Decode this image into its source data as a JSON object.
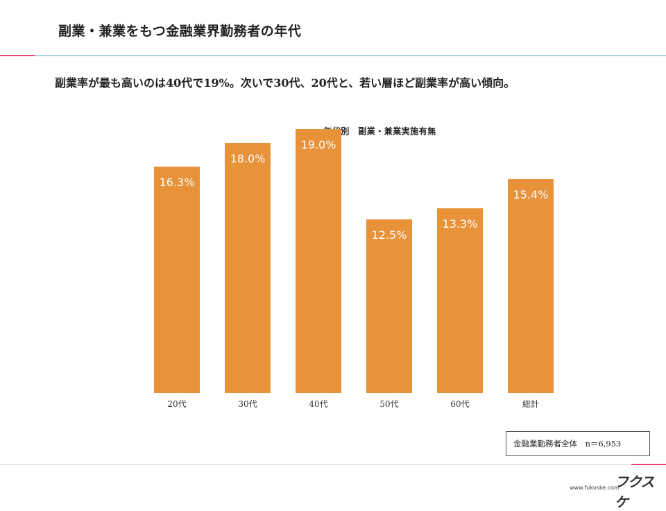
{
  "slide": {
    "title": "副業・兼業をもつ金融業界勤務者の年代",
    "headline": "副業率が最も高いのは40代で19%。次いで30代、20代と、若い層ほど副業率が高い傾向。",
    "note": "金融業勤務者全体　n＝6,953",
    "footer_url": "www.fukuske.com",
    "brand": "フクスケ"
  },
  "colors": {
    "bar": "#e8923a",
    "accent_pink": "#e8436d",
    "accent_blue": "#a9d6e3"
  },
  "chart_data": {
    "type": "bar",
    "title": "年代別　副業・兼業実施有無",
    "categories": [
      "20代",
      "30代",
      "40代",
      "50代",
      "60代",
      "総計"
    ],
    "values": [
      16.3,
      18.0,
      19.0,
      12.5,
      13.3,
      15.4
    ],
    "value_labels": [
      "16.3%",
      "18.0%",
      "19.0%",
      "12.5%",
      "13.3%",
      "15.4%"
    ],
    "unit": "%",
    "ylim": [
      0,
      20
    ],
    "grid": false,
    "legend": "none"
  }
}
